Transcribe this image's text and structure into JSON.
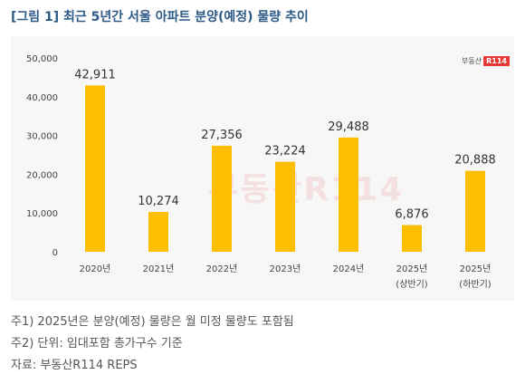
{
  "title": "[그림 1] 최근 5년간 서울 아파트 분양(예정) 물량 추이",
  "logo": {
    "text": "부동산",
    "badge": "R114"
  },
  "watermark": "부동산R114",
  "chart_data": {
    "type": "bar",
    "categories": [
      [
        "2020년"
      ],
      [
        "2021년"
      ],
      [
        "2022년"
      ],
      [
        "2023년"
      ],
      [
        "2024년"
      ],
      [
        "2025년",
        "(상반기)"
      ],
      [
        "2025년",
        "(하반기)"
      ]
    ],
    "values": [
      42911,
      10274,
      27356,
      23224,
      29488,
      6876,
      20888
    ],
    "value_labels": [
      "42,911",
      "10,274",
      "27,356",
      "23,224",
      "29,488",
      "6,876",
      "20,888"
    ],
    "y_ticks": [
      "50,000",
      "40,000",
      "30,000",
      "20,000",
      "10,000",
      "0"
    ],
    "ylim": [
      0,
      50000
    ],
    "bar_color": "#fbbf00",
    "title": "",
    "xlabel": "",
    "ylabel": ""
  },
  "notes": [
    "주1) 2025년은 분양(예정) 물량은 월 미정 물량도 포함됨",
    "주2) 단위: 임대포함 총가구수 기준",
    "자료: 부동산R114 REPS"
  ]
}
